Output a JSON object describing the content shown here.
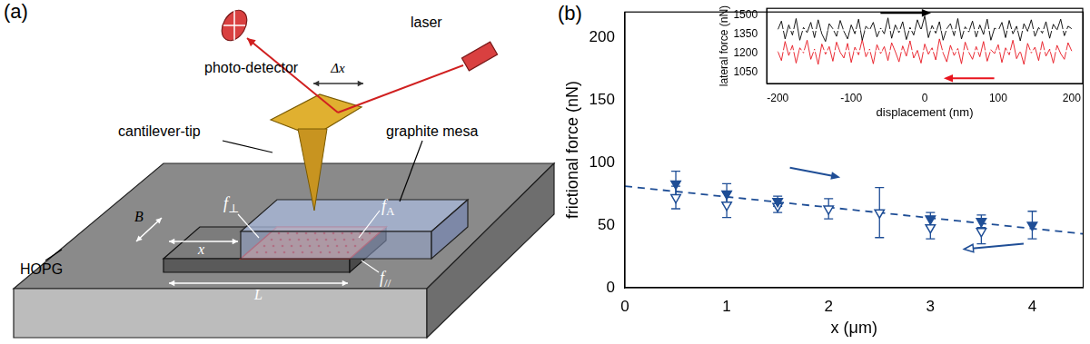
{
  "panel_labels": [
    "(a)",
    "(b)"
  ],
  "diagram": {
    "labels": {
      "photodetector": "photo-detector",
      "laser": "laser",
      "displacement": "Δx",
      "cantilever": "cantilever-tip",
      "mesa": "graphite mesa",
      "substrate": "HOPG",
      "width": "B",
      "shift": "x",
      "length": "L"
    },
    "forces": [
      {
        "base": "f",
        "sub": "⊥"
      },
      {
        "base": "f",
        "sub": "A"
      },
      {
        "base": "f",
        "sub": "//"
      }
    ]
  },
  "chart_data": [
    {
      "type": "scatter",
      "x_label": "x (μm)",
      "y_label": "frictional force (nN)",
      "xlim": [
        0,
        4.5
      ],
      "xticks": [
        0,
        1,
        2,
        3,
        4
      ],
      "ylim": [
        0,
        220
      ],
      "yticks": [
        0,
        50,
        100,
        150,
        200
      ],
      "grid": false,
      "series": [
        {
          "color": "#1f4e96",
          "marker": "triangle_down_filled",
          "x": [
            0.5,
            1,
            1.5,
            3,
            3.5,
            4
          ],
          "values": [
            83,
            75,
            69,
            55,
            53,
            50
          ],
          "errors": [
            10,
            8,
            4,
            5,
            5,
            11
          ]
        },
        {
          "color": "#1f4e96",
          "marker": "triangle_down_open",
          "x": [
            0.5,
            1,
            1.5,
            2,
            2.5,
            3,
            3.5
          ],
          "values": [
            72,
            66,
            65,
            63,
            60,
            48,
            45
          ],
          "errors": [
            9,
            10,
            5,
            8,
            20,
            9,
            10
          ]
        },
        {
          "type": "line",
          "line_style": "dashed",
          "color": "#1f4e96",
          "x": [
            0,
            4.5
          ],
          "values": [
            81,
            43
          ]
        }
      ]
    },
    {
      "type": "line",
      "x_label": "displacement (nm)",
      "y_label": "lateral force (nN)",
      "xlim": [
        -215,
        215
      ],
      "xticks": [
        -200,
        -100,
        0,
        100,
        200
      ],
      "ylim": [
        960,
        1550
      ],
      "yticks": [
        1050,
        1200,
        1350,
        1500
      ],
      "grid": false,
      "x": [
        -200,
        -195,
        -190,
        -185,
        -180,
        -175,
        -170,
        -165,
        -160,
        -155,
        -150,
        -145,
        -140,
        -135,
        -130,
        -125,
        -120,
        -115,
        -110,
        -105,
        -100,
        -95,
        -90,
        -85,
        -80,
        -75,
        -70,
        -65,
        -60,
        -55,
        -50,
        -45,
        -40,
        -35,
        -30,
        -25,
        -20,
        -15,
        -10,
        -5,
        0,
        5,
        10,
        15,
        20,
        25,
        30,
        35,
        40,
        45,
        50,
        55,
        60,
        65,
        70,
        75,
        80,
        85,
        90,
        95,
        100,
        105,
        110,
        115,
        120,
        125,
        130,
        135,
        140,
        145,
        150,
        155,
        160,
        165,
        170,
        175,
        180,
        185,
        190,
        195,
        200
      ],
      "series": [
        {
          "color": "#000000",
          "mean": 1380,
          "values": [
            1380,
            1450,
            1310,
            1420,
            1340,
            1470,
            1300,
            1400,
            1360,
            1440,
            1320,
            1460,
            1350,
            1290,
            1430,
            1390,
            1330,
            1455,
            1370,
            1310,
            1420,
            1350,
            1465,
            1300,
            1410,
            1380,
            1440,
            1325,
            1395,
            1350,
            1475,
            1315,
            1420,
            1360,
            1445,
            1305,
            1400,
            1340,
            1460,
            1380,
            1490,
            1320,
            1415,
            1355,
            1445,
            1300,
            1390,
            1430,
            1335,
            1470,
            1310,
            1405,
            1365,
            1450,
            1325,
            1420,
            1345,
            1465,
            1300,
            1395,
            1375,
            1440,
            1320,
            1455,
            1350,
            1410,
            1295,
            1430,
            1370,
            1460,
            1330,
            1400,
            1355,
            1445,
            1315,
            1425,
            1380,
            1465,
            1335,
            1410,
            1390
          ]
        },
        {
          "color": "#e8141e",
          "mean": 1215,
          "values": [
            1215,
            1140,
            1290,
            1180,
            1260,
            1120,
            1240,
            1200,
            1300,
            1150,
            1230,
            1110,
            1270,
            1190,
            1250,
            1135,
            1285,
            1205,
            1160,
            1275,
            1125,
            1245,
            1185,
            1305,
            1170,
            1230,
            1115,
            1265,
            1195,
            1250,
            1140,
            1280,
            1210,
            1130,
            1255,
            1175,
            1295,
            1160,
            1220,
            1120,
            1270,
            1190,
            1240,
            1145,
            1310,
            1200,
            1130,
            1260,
            1180,
            1235,
            1115,
            1285,
            1205,
            1150,
            1250,
            1170,
            1290,
            1135,
            1225,
            1195,
            1265,
            1125,
            1240,
            1185,
            1300,
            1155,
            1215,
            1110,
            1275,
            1200,
            1245,
            1140,
            1290,
            1175,
            1230,
            1120,
            1260,
            1195,
            1150,
            1280,
            1215
          ]
        }
      ]
    }
  ]
}
